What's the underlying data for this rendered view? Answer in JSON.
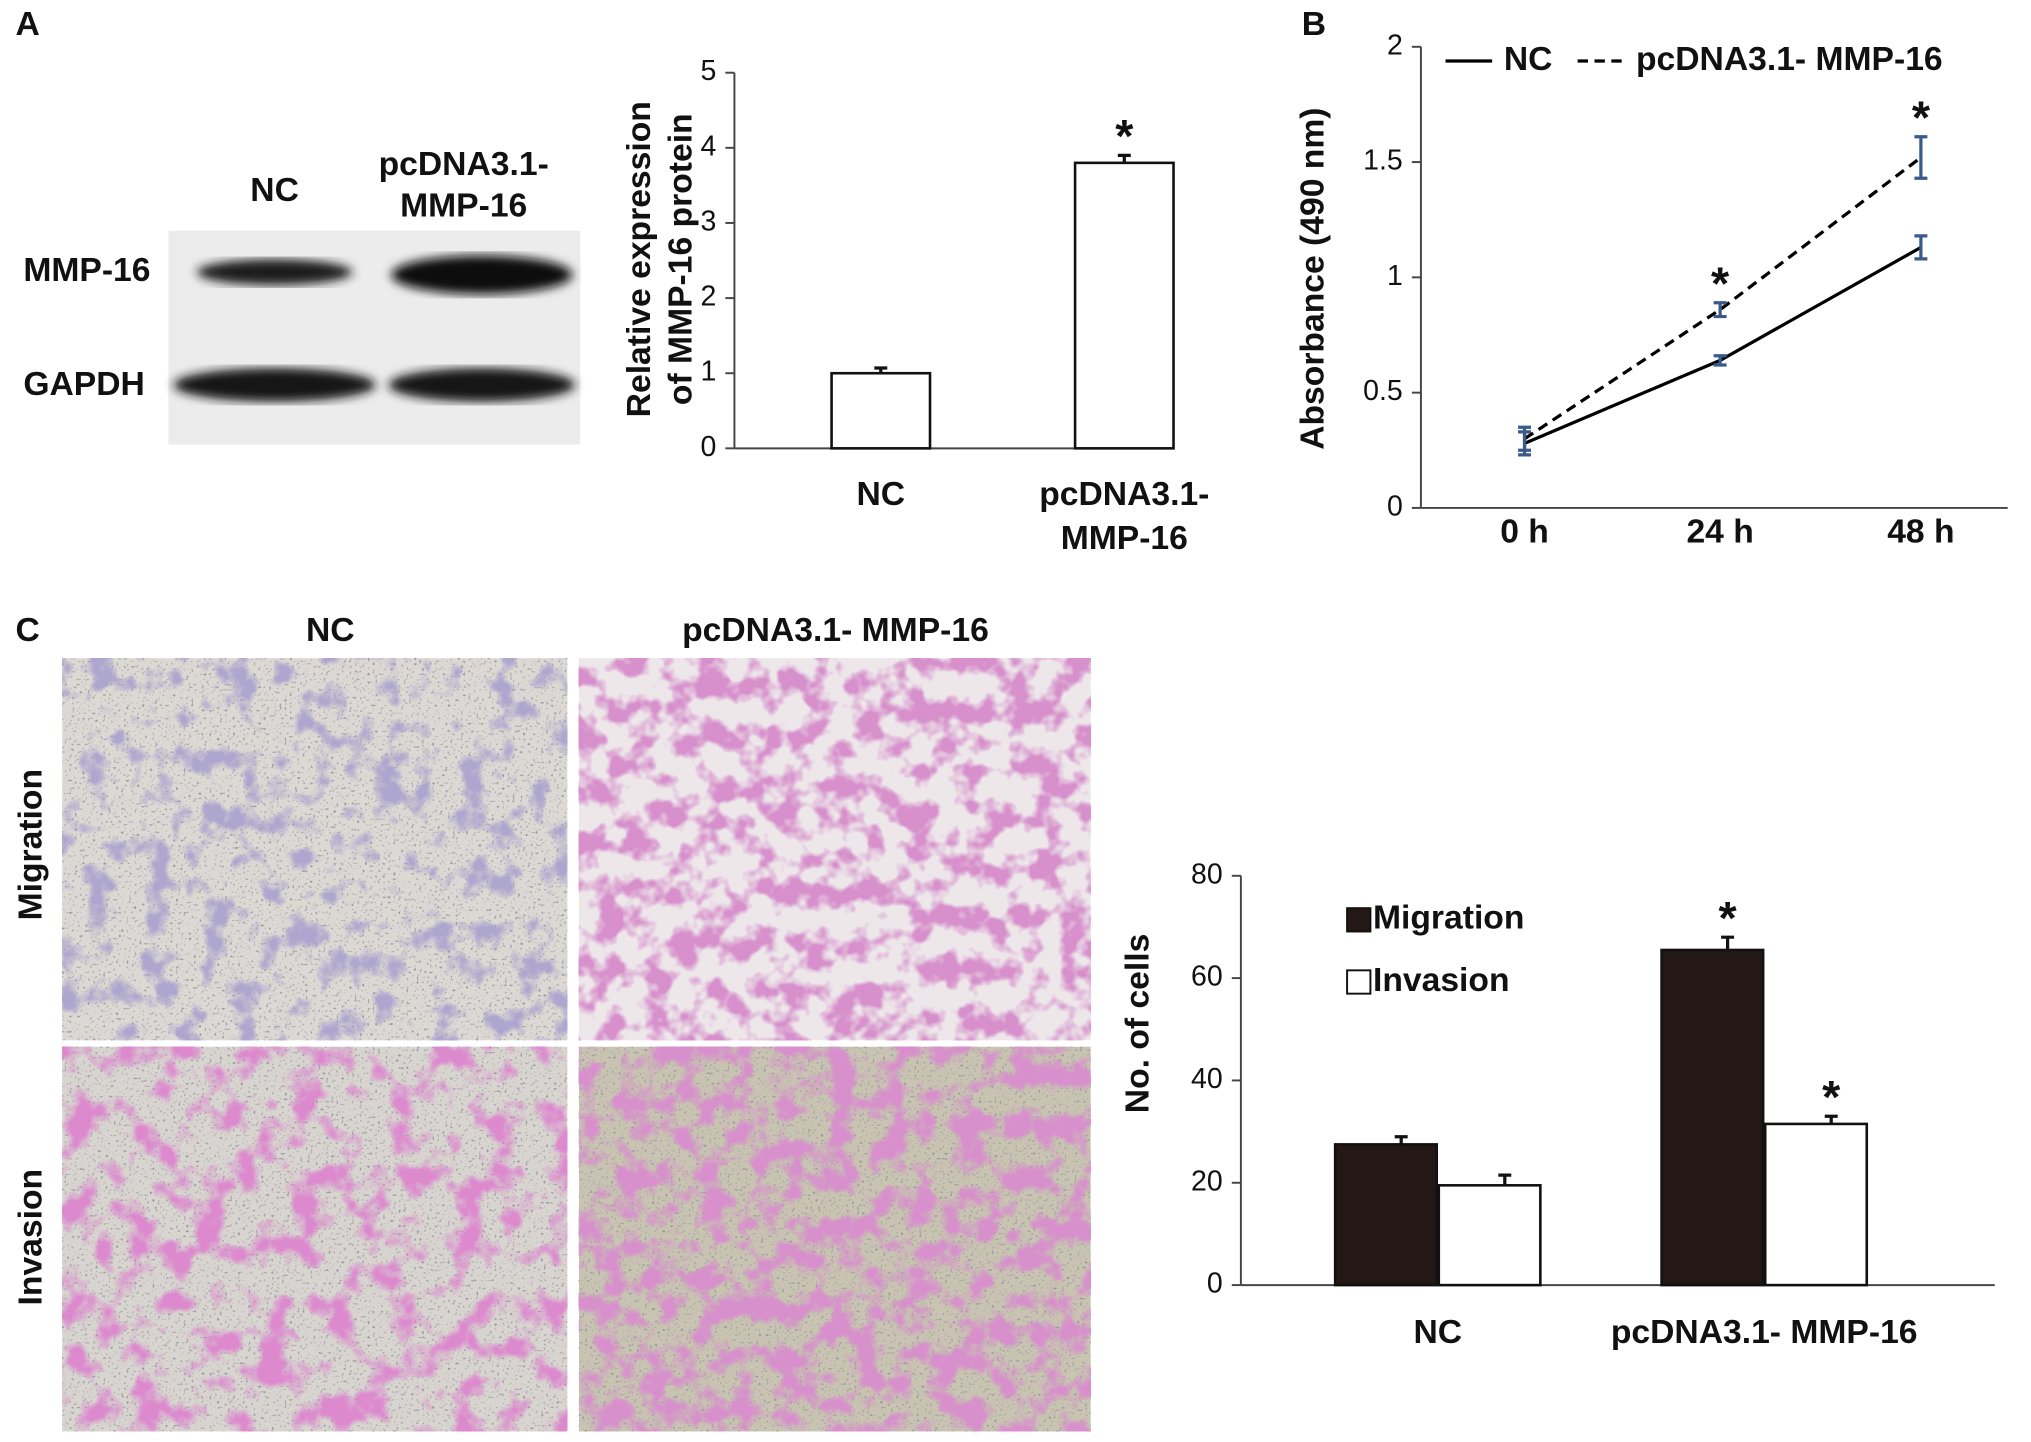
{
  "panel_labels": [
    "A",
    "B",
    "C"
  ],
  "blot": {
    "columns": [
      "NC",
      [
        "pcDNA3.1-",
        "MMP-16"
      ]
    ],
    "rows": [
      "MMP-16",
      "GAPDH"
    ]
  },
  "micrographs": {
    "columns": [
      "NC",
      "pcDNA3.1- MMP-16"
    ],
    "rows": [
      "Migration",
      "Invasion"
    ]
  },
  "chart_data": [
    {
      "type": "bar",
      "ylabel": [
        "Relative expression",
        "of MMP-16 protein"
      ],
      "categories": [
        [
          "NC"
        ],
        [
          "pcDNA3.1-",
          "MMP-16"
        ]
      ],
      "values": [
        1.0,
        3.8
      ],
      "errors": [
        0.07,
        0.1
      ],
      "value_labels": [
        null,
        "*"
      ],
      "color": "#ffffff",
      "ylim": [
        0,
        5
      ],
      "yticks": [
        0,
        1,
        2,
        3,
        4,
        5
      ]
    },
    {
      "type": "line",
      "ylabel": [
        "Absorbance (490 nm)"
      ],
      "categories": [
        "0 h",
        "24 h",
        "48 h"
      ],
      "series": [
        {
          "name": "NC",
          "color": "#000000",
          "dash": false,
          "values": [
            0.28,
            0.64,
            1.13
          ],
          "errors": [
            0.05,
            0.02,
            0.05
          ],
          "value_labels": [
            null,
            null,
            null
          ]
        },
        {
          "name": "pcDNA3.1- MMP-16",
          "color": "#000000",
          "dash": true,
          "values": [
            0.3,
            0.86,
            1.52
          ],
          "errors": [
            0.05,
            0.03,
            0.09
          ],
          "value_labels": [
            null,
            "*",
            "*"
          ]
        }
      ],
      "ylim": [
        0,
        2
      ],
      "yticks": [
        0,
        0.5,
        1,
        1.5,
        2
      ]
    },
    {
      "type": "bar",
      "ylabel": [
        "No. of cells"
      ],
      "categories": [
        [
          "NC"
        ],
        [
          "pcDNA3.1- MMP-16"
        ]
      ],
      "series": [
        {
          "name": "Migration",
          "color": "#231815",
          "values": [
            27.5,
            65.5
          ],
          "errors": [
            1.5,
            2.5
          ],
          "value_labels": [
            null,
            "*"
          ]
        },
        {
          "name": "Invasion",
          "color": "#ffffff",
          "values": [
            19.5,
            31.5
          ],
          "errors": [
            2,
            1.5
          ],
          "value_labels": [
            null,
            "*"
          ]
        }
      ],
      "ylim": [
        0,
        80
      ],
      "yticks": [
        0,
        20,
        40,
        60,
        80
      ]
    }
  ]
}
